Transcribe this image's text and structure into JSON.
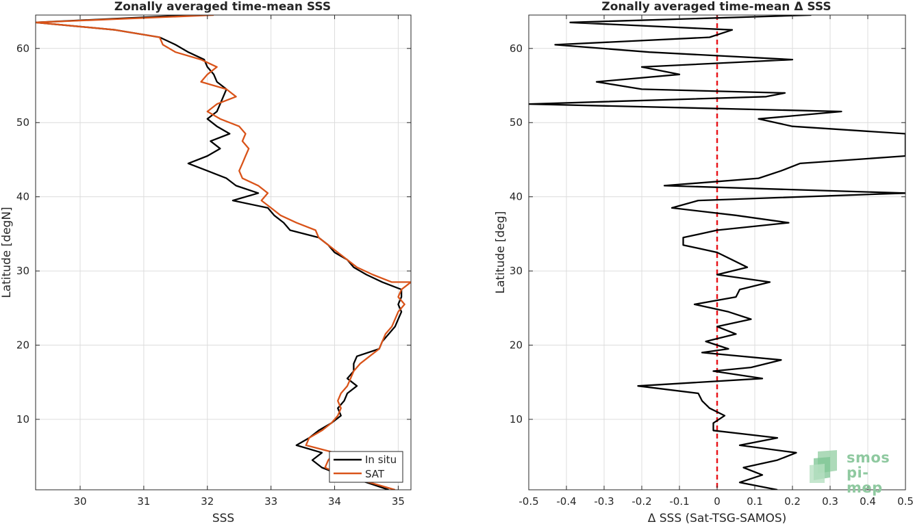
{
  "colors": {
    "insitu": "#000000",
    "sat": "#d95319",
    "zero_line": "#e8141a",
    "grid": "#dcdcdc",
    "logo": "#8fc9a0"
  },
  "logo": {
    "line1": "smos",
    "line2": "pi-mep"
  },
  "chart_data": [
    {
      "type": "line",
      "title": "Zonally averaged time-mean SSS",
      "xlabel": "SSS",
      "ylabel": "Latitude [degN]",
      "xlim": [
        29.3,
        35.2
      ],
      "ylim": [
        0.5,
        64.5
      ],
      "xticks": [
        30,
        31,
        32,
        33,
        34,
        35
      ],
      "yticks": [
        10,
        20,
        30,
        40,
        50,
        60
      ],
      "grid": true,
      "legend": {
        "placement": "bottom-right",
        "entries": [
          "In situ",
          "SAT"
        ]
      },
      "series": [
        {
          "name": "In situ",
          "color": "#000000",
          "points": [
            [
              31.75,
              64.5
            ],
            [
              29.3,
              63.5
            ],
            [
              30.55,
              62.5
            ],
            [
              31.25,
              61.5
            ],
            [
              31.5,
              60.5
            ],
            [
              31.7,
              59.5
            ],
            [
              31.95,
              58.5
            ],
            [
              32.0,
              57.5
            ],
            [
              32.1,
              56.5
            ],
            [
              32.15,
              55.5
            ],
            [
              32.3,
              54.5
            ],
            [
              32.25,
              53.5
            ],
            [
              32.2,
              52.5
            ],
            [
              32.15,
              51.5
            ],
            [
              32.0,
              50.5
            ],
            [
              32.15,
              49.5
            ],
            [
              32.35,
              48.5
            ],
            [
              32.05,
              47.5
            ],
            [
              32.2,
              46.5
            ],
            [
              32.0,
              45.5
            ],
            [
              31.7,
              44.5
            ],
            [
              32.0,
              43.5
            ],
            [
              32.3,
              42.5
            ],
            [
              32.45,
              41.5
            ],
            [
              32.8,
              40.5
            ],
            [
              32.4,
              39.5
            ],
            [
              32.95,
              38.5
            ],
            [
              33.05,
              37.5
            ],
            [
              33.2,
              36.5
            ],
            [
              33.3,
              35.5
            ],
            [
              33.75,
              34.5
            ],
            [
              33.9,
              33.5
            ],
            [
              34.0,
              32.5
            ],
            [
              34.2,
              31.5
            ],
            [
              34.3,
              30.5
            ],
            [
              34.5,
              29.5
            ],
            [
              34.75,
              28.5
            ],
            [
              35.05,
              27.5
            ],
            [
              35.05,
              26.5
            ],
            [
              35.0,
              25.5
            ],
            [
              35.05,
              24.5
            ],
            [
              35.0,
              23.5
            ],
            [
              34.95,
              22.5
            ],
            [
              34.85,
              21.5
            ],
            [
              34.75,
              20.5
            ],
            [
              34.7,
              19.5
            ],
            [
              34.35,
              18.5
            ],
            [
              34.3,
              17.5
            ],
            [
              34.3,
              16.5
            ],
            [
              34.2,
              15.5
            ],
            [
              34.35,
              14.5
            ],
            [
              34.2,
              13.5
            ],
            [
              34.15,
              12.5
            ],
            [
              34.05,
              11.5
            ],
            [
              34.1,
              10.5
            ],
            [
              33.95,
              9.5
            ],
            [
              33.75,
              8.5
            ],
            [
              33.6,
              7.5
            ],
            [
              33.4,
              6.5
            ],
            [
              33.8,
              5.5
            ],
            [
              33.65,
              4.5
            ],
            [
              33.8,
              3.5
            ],
            [
              34.1,
              2.5
            ],
            [
              34.5,
              1.5
            ],
            [
              34.85,
              0.5
            ]
          ]
        },
        {
          "name": "SAT",
          "color": "#d95319",
          "points": [
            [
              32.1,
              64.5
            ],
            [
              29.3,
              63.5
            ],
            [
              30.55,
              62.5
            ],
            [
              31.25,
              61.5
            ],
            [
              31.3,
              60.5
            ],
            [
              31.5,
              59.5
            ],
            [
              31.9,
              58.5
            ],
            [
              32.15,
              57.5
            ],
            [
              32.0,
              56.5
            ],
            [
              31.9,
              55.5
            ],
            [
              32.3,
              54.5
            ],
            [
              32.45,
              53.5
            ],
            [
              32.15,
              52.5
            ],
            [
              32.0,
              51.5
            ],
            [
              32.2,
              50.5
            ],
            [
              32.5,
              49.5
            ],
            [
              32.6,
              48.5
            ],
            [
              32.55,
              47.5
            ],
            [
              32.65,
              46.5
            ],
            [
              32.6,
              45.5
            ],
            [
              32.55,
              44.5
            ],
            [
              32.5,
              43.5
            ],
            [
              32.55,
              42.5
            ],
            [
              32.8,
              41.5
            ],
            [
              32.95,
              40.5
            ],
            [
              32.85,
              39.5
            ],
            [
              33.0,
              38.5
            ],
            [
              33.15,
              37.5
            ],
            [
              33.4,
              36.5
            ],
            [
              33.7,
              35.5
            ],
            [
              33.75,
              34.5
            ],
            [
              33.9,
              33.5
            ],
            [
              34.05,
              32.5
            ],
            [
              34.2,
              31.5
            ],
            [
              34.35,
              30.5
            ],
            [
              34.6,
              29.5
            ],
            [
              34.9,
              28.5
            ],
            [
              35.2,
              28.5
            ],
            [
              35.05,
              27.5
            ],
            [
              35.0,
              26.5
            ],
            [
              35.1,
              25.5
            ],
            [
              35.0,
              24.5
            ],
            [
              34.95,
              23.5
            ],
            [
              34.9,
              22.5
            ],
            [
              34.8,
              21.5
            ],
            [
              34.75,
              20.5
            ],
            [
              34.7,
              19.5
            ],
            [
              34.55,
              18.5
            ],
            [
              34.4,
              17.5
            ],
            [
              34.3,
              16.5
            ],
            [
              34.25,
              15.5
            ],
            [
              34.2,
              14.5
            ],
            [
              34.1,
              13.5
            ],
            [
              34.05,
              12.5
            ],
            [
              34.1,
              11.5
            ],
            [
              34.05,
              10.5
            ],
            [
              33.95,
              9.5
            ],
            [
              33.8,
              8.5
            ],
            [
              33.6,
              7.5
            ],
            [
              33.55,
              6.5
            ],
            [
              34.0,
              5.5
            ],
            [
              33.9,
              4.5
            ],
            [
              33.85,
              3.5
            ],
            [
              34.1,
              2.5
            ],
            [
              34.55,
              1.5
            ],
            [
              34.95,
              0.5
            ]
          ]
        }
      ]
    },
    {
      "type": "line",
      "title": "Zonally averaged time-mean Δ SSS",
      "xlabel": "Δ SSS (Sat-TSG-SAMOS)",
      "ylabel": "Latitude [deg]",
      "xlim": [
        -0.5,
        0.5
      ],
      "ylim": [
        0.5,
        64.5
      ],
      "xticks": [
        -0.5,
        -0.4,
        -0.3,
        -0.2,
        -0.1,
        0,
        0.1,
        0.2,
        0.3,
        0.4,
        0.5
      ],
      "xtick_labels": [
        "-0.5",
        "-0.4",
        "-0.3",
        "-0.2",
        "-0.1",
        "0",
        "0.1",
        "0.2",
        "0.3",
        "0.4",
        "0.5"
      ],
      "yticks": [
        10,
        20,
        30,
        40,
        50,
        60
      ],
      "grid": true,
      "series": [
        {
          "name": "",
          "color": "#000000",
          "points": [
            [
              0.25,
              64.5
            ],
            [
              -0.39,
              63.5
            ],
            [
              0.04,
              62.5
            ],
            [
              -0.02,
              61.5
            ],
            [
              -0.43,
              60.5
            ],
            [
              -0.18,
              59.5
            ],
            [
              0.2,
              58.5
            ],
            [
              -0.2,
              57.5
            ],
            [
              -0.1,
              56.5
            ],
            [
              -0.32,
              55.5
            ],
            [
              -0.2,
              54.5
            ],
            [
              0.18,
              54.0
            ],
            [
              0.13,
              53.5
            ],
            [
              -0.5,
              52.5
            ],
            [
              0.33,
              51.5
            ],
            [
              0.11,
              50.5
            ],
            [
              0.2,
              49.5
            ],
            [
              0.5,
              48.5
            ],
            [
              0.5,
              45.5
            ],
            [
              0.22,
              44.5
            ],
            [
              0.17,
              43.5
            ],
            [
              0.11,
              42.5
            ],
            [
              -0.14,
              41.5
            ],
            [
              0.5,
              40.5
            ],
            [
              -0.05,
              39.5
            ],
            [
              -0.12,
              38.5
            ],
            [
              0.05,
              37.5
            ],
            [
              0.19,
              36.5
            ],
            [
              0.0,
              35.5
            ],
            [
              -0.09,
              34.5
            ],
            [
              -0.09,
              33.5
            ],
            [
              0.0,
              32.5
            ],
            [
              0.04,
              31.5
            ],
            [
              0.08,
              30.5
            ],
            [
              0.0,
              29.5
            ],
            [
              0.14,
              28.5
            ],
            [
              0.06,
              27.5
            ],
            [
              0.05,
              26.5
            ],
            [
              -0.06,
              25.5
            ],
            [
              0.03,
              24.5
            ],
            [
              0.09,
              23.5
            ],
            [
              0.0,
              22.5
            ],
            [
              0.05,
              21.5
            ],
            [
              -0.03,
              20.5
            ],
            [
              0.03,
              19.5
            ],
            [
              -0.04,
              19.0
            ],
            [
              0.17,
              18.0
            ],
            [
              0.09,
              17.0
            ],
            [
              -0.01,
              16.5
            ],
            [
              0.12,
              15.5
            ],
            [
              -0.21,
              14.5
            ],
            [
              -0.05,
              13.5
            ],
            [
              -0.04,
              12.5
            ],
            [
              -0.02,
              11.5
            ],
            [
              0.02,
              10.5
            ],
            [
              -0.01,
              9.5
            ],
            [
              -0.01,
              8.5
            ],
            [
              0.16,
              7.5
            ],
            [
              0.06,
              6.5
            ],
            [
              0.21,
              5.5
            ],
            [
              0.16,
              4.5
            ],
            [
              0.07,
              3.5
            ],
            [
              0.12,
              2.5
            ],
            [
              0.06,
              1.5
            ],
            [
              0.16,
              0.5
            ]
          ]
        }
      ],
      "reference_line": {
        "x": 0,
        "style": "dashed",
        "color": "#e8141a"
      }
    }
  ]
}
